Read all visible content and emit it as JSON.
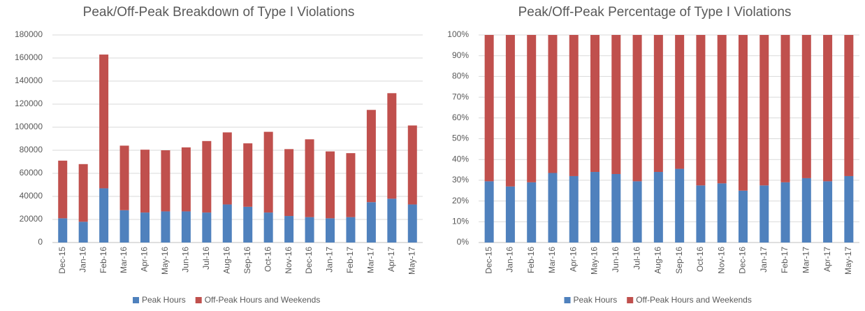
{
  "chart_data": [
    {
      "type": "stacked_bar",
      "title": "Peak/Off-Peak Breakdown of Type I Violations",
      "categories": [
        "Dec-15",
        "Jan-16",
        "Feb-16",
        "Mar-16",
        "Apr-16",
        "May-16",
        "Jun-16",
        "Jul-16",
        "Aug-16",
        "Sep-16",
        "Oct-16",
        "Nov-16",
        "Dec-16",
        "Jan-17",
        "Feb-17",
        "Mar-17",
        "Apr-17",
        "May-17"
      ],
      "series": [
        {
          "name": "Peak Hours",
          "color": "#4f81bd",
          "values": [
            21000,
            18000,
            47000,
            28000,
            26000,
            27000,
            27000,
            26000,
            33000,
            31000,
            26000,
            23000,
            22000,
            21000,
            22000,
            35000,
            38000,
            33000
          ]
        },
        {
          "name": "Off-Peak Hours and Weekends",
          "color": "#c0504d",
          "values": [
            50000,
            50000,
            116000,
            56000,
            54500,
            53000,
            55500,
            62000,
            62500,
            55000,
            70000,
            58000,
            67500,
            58000,
            55500,
            80000,
            91500,
            68500
          ]
        }
      ],
      "ylim": [
        0,
        180000
      ],
      "yticks": [
        0,
        20000,
        40000,
        60000,
        80000,
        100000,
        120000,
        140000,
        160000,
        180000
      ],
      "grid": true,
      "legend": "bottom"
    },
    {
      "type": "stacked_bar",
      "title": "Peak/Off-Peak Percentage of Type I Violations",
      "categories": [
        "Dec-15",
        "Jan-16",
        "Feb-16",
        "Mar-16",
        "Apr-16",
        "May-16",
        "Jun-16",
        "Jul-16",
        "Aug-16",
        "Sep-16",
        "Oct-16",
        "Nov-16",
        "Dec-16",
        "Jan-17",
        "Feb-17",
        "Mar-17",
        "Apr-17",
        "May-17"
      ],
      "series": [
        {
          "name": "Peak Hours",
          "color": "#4f81bd",
          "values": [
            29.5,
            27,
            29,
            33.5,
            32,
            34,
            33,
            29.5,
            34,
            35.5,
            27.5,
            28.5,
            25,
            27.5,
            29,
            31,
            29.5,
            32
          ]
        },
        {
          "name": "Off-Peak Hours and Weekends",
          "color": "#c0504d",
          "values": [
            70.5,
            73,
            71,
            66.5,
            68,
            66,
            67,
            70.5,
            66,
            64.5,
            72.5,
            71.5,
            75,
            72.5,
            71,
            69,
            70.5,
            68
          ]
        }
      ],
      "ylim": [
        0,
        100
      ],
      "yticks": [
        {
          "value": 0,
          "label": "0%"
        },
        {
          "value": 10,
          "label": "10%"
        },
        {
          "value": 20,
          "label": "20%"
        },
        {
          "value": 30,
          "label": "30%"
        },
        {
          "value": 40,
          "label": "40%"
        },
        {
          "value": 50,
          "label": "50%"
        },
        {
          "value": 60,
          "label": "60%"
        },
        {
          "value": 70,
          "label": "70%"
        },
        {
          "value": 80,
          "label": "80%"
        },
        {
          "value": 90,
          "label": "90%"
        },
        {
          "value": 100,
          "label": "100%"
        }
      ],
      "grid": true,
      "legend": "bottom"
    }
  ]
}
